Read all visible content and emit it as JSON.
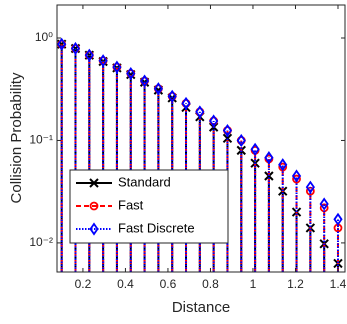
{
  "chart_data": {
    "type": "stem",
    "xlabel": "Distance",
    "ylabel": "Collision Probability",
    "x": [
      0.1,
      0.165,
      0.23,
      0.295,
      0.36,
      0.425,
      0.49,
      0.555,
      0.62,
      0.685,
      0.75,
      0.815,
      0.88,
      0.945,
      1.01,
      1.075,
      1.14,
      1.205,
      1.27,
      1.335,
      1.4
    ],
    "series": [
      {
        "name": "Standard",
        "color": "#000000",
        "marker": "x",
        "dash": "solid",
        "values": [
          0.87,
          0.79,
          0.68,
          0.59,
          0.51,
          0.44,
          0.37,
          0.31,
          0.26,
          0.21,
          0.17,
          0.135,
          0.105,
          0.08,
          0.06,
          0.045,
          0.032,
          0.02,
          0.014,
          0.0098,
          0.0063
        ]
      },
      {
        "name": "Fast",
        "color": "#ff0000",
        "marker": "circle",
        "dash": "dashed",
        "values": [
          0.87,
          0.79,
          0.68,
          0.6,
          0.52,
          0.45,
          0.38,
          0.32,
          0.27,
          0.23,
          0.19,
          0.155,
          0.125,
          0.1,
          0.08,
          0.066,
          0.055,
          0.042,
          0.032,
          0.022,
          0.014
        ]
      },
      {
        "name": "Fast Discrete",
        "color": "#0000ff",
        "marker": "diamond",
        "dash": "dotted",
        "values": [
          0.87,
          0.79,
          0.68,
          0.6,
          0.52,
          0.45,
          0.38,
          0.32,
          0.27,
          0.23,
          0.19,
          0.155,
          0.125,
          0.1,
          0.082,
          0.068,
          0.058,
          0.045,
          0.035,
          0.024,
          0.017
        ]
      }
    ],
    "xlim": [
      0.078,
      1.433
    ],
    "xticks": [
      0.2,
      0.4,
      0.6,
      0.8,
      1,
      1.2,
      1.4
    ],
    "ylim": [
      0.0052,
      2.1
    ],
    "ylog": true,
    "yticks": [
      {
        "value": 0.01,
        "label": "10⁻²"
      },
      {
        "value": 0.1,
        "label": "10⁻¹"
      },
      {
        "value": 1,
        "label": "10⁰"
      }
    ],
    "legend_loc": "lower left"
  }
}
